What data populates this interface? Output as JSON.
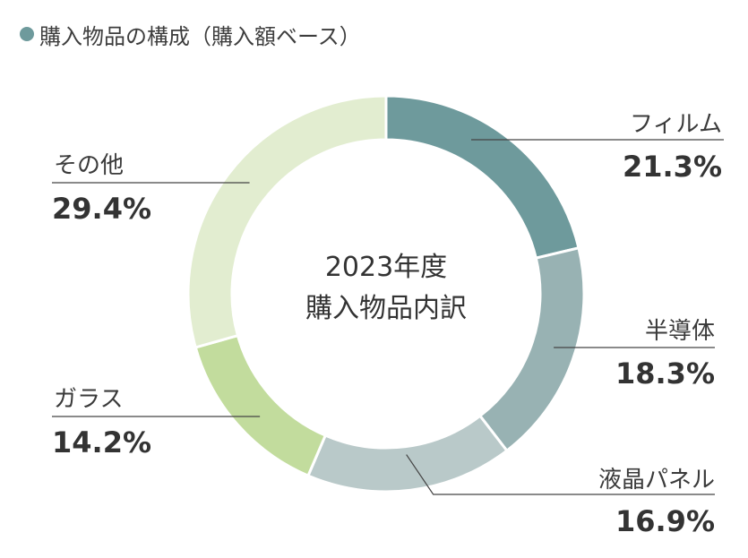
{
  "header": {
    "title": "購入物品の構成（購入額ベース）",
    "dot_color": "#6e9a9c"
  },
  "chart_data": {
    "type": "pie",
    "center_label": {
      "line1": "2023年度",
      "line2": "購入物品内訳"
    },
    "unit": "%",
    "slices": [
      {
        "label": "フィルム",
        "value": 21.3,
        "value_text": "21.3%",
        "color": "#6e9a9c"
      },
      {
        "label": "半導体",
        "value": 18.3,
        "value_text": "18.3%",
        "color": "#98b2b3"
      },
      {
        "label": "液晶パネル",
        "value": 16.9,
        "value_text": "16.9%",
        "color": "#b9c9c9"
      },
      {
        "label": "ガラス",
        "value": 14.2,
        "value_text": "14.2%",
        "color": "#c2dc9d"
      },
      {
        "label": "その他",
        "value": 29.4,
        "value_text": "29.4%",
        "color": "#e2edd0"
      }
    ]
  }
}
